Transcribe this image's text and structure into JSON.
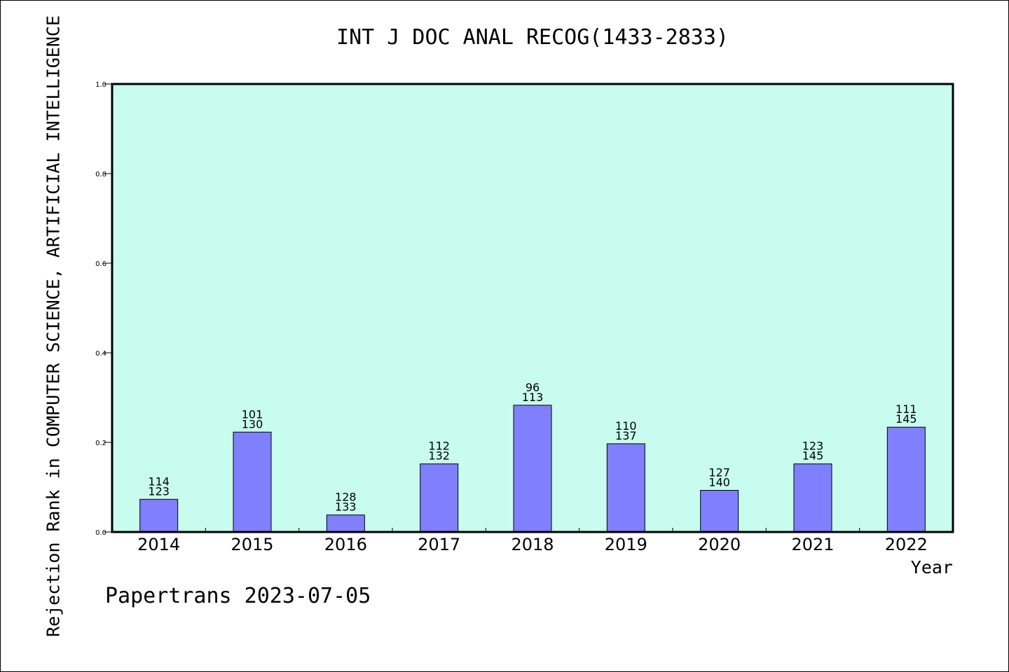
{
  "chart_data": {
    "type": "bar",
    "title": "INT J DOC ANAL RECOG(1433-2833)",
    "xlabel": "Year",
    "ylabel": "Rejection Rank in COMPUTER SCIENCE, ARTIFICIAL INTELLIGENCE",
    "ylim": [
      0,
      1.0
    ],
    "yticks": [
      "0.0",
      "0.2",
      "0.4",
      "0.6",
      "0.8",
      "1.0"
    ],
    "categories": [
      "2014",
      "2015",
      "2016",
      "2017",
      "2018",
      "2019",
      "2020",
      "2021",
      "2022"
    ],
    "values": [
      0.073,
      0.223,
      0.038,
      0.152,
      0.283,
      0.197,
      0.093,
      0.152,
      0.234
    ],
    "labels_top": [
      "114",
      "101",
      "128",
      "112",
      "96",
      "110",
      "127",
      "123",
      "111"
    ],
    "labels_bottom": [
      "123",
      "130",
      "133",
      "132",
      "113",
      "137",
      "140",
      "145",
      "145"
    ],
    "grid": false,
    "colors": {
      "plot_background": "#c8fcee",
      "bar": "#8080ff"
    }
  },
  "footer": "Papertrans 2023-07-05"
}
